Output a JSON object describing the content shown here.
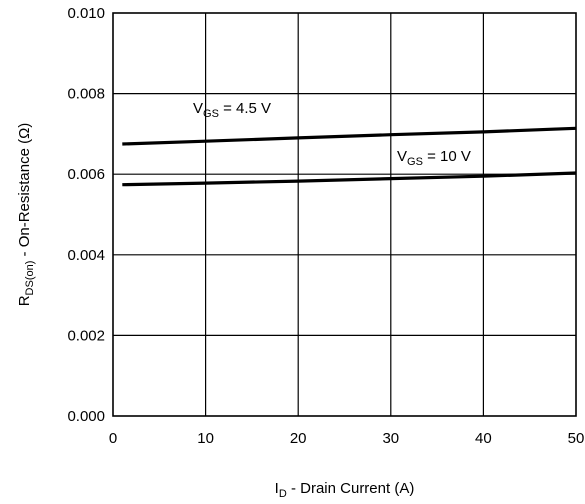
{
  "chart_data": {
    "type": "line",
    "title": "",
    "xlabel": {
      "main": "I",
      "sub": "D",
      "rest": " - Drain Current (A)"
    },
    "ylabel": {
      "main": "R",
      "sub": "DS(on)",
      "rest": " - On-Resistance (Ω)"
    },
    "xlim": [
      0,
      50
    ],
    "ylim": [
      0,
      0.01
    ],
    "xticks": [
      "0",
      "10",
      "20",
      "30",
      "40",
      "50"
    ],
    "yticks": [
      "0.000",
      "0.002",
      "0.004",
      "0.006",
      "0.008",
      "0.010"
    ],
    "grid": true,
    "series": [
      {
        "name": {
          "main": "V",
          "sub": "GS",
          "rest": " = 4.5 V"
        },
        "x": [
          1,
          10,
          20,
          30,
          40,
          50
        ],
        "y": [
          0.00675,
          0.00682,
          0.0069,
          0.00698,
          0.00705,
          0.00714
        ]
      },
      {
        "name": {
          "main": "V",
          "sub": "GS",
          "rest": " = 10 V"
        },
        "x": [
          1,
          10,
          20,
          30,
          40,
          50
        ],
        "y": [
          0.00574,
          0.00578,
          0.00583,
          0.00589,
          0.00595,
          0.00603
        ]
      }
    ]
  }
}
